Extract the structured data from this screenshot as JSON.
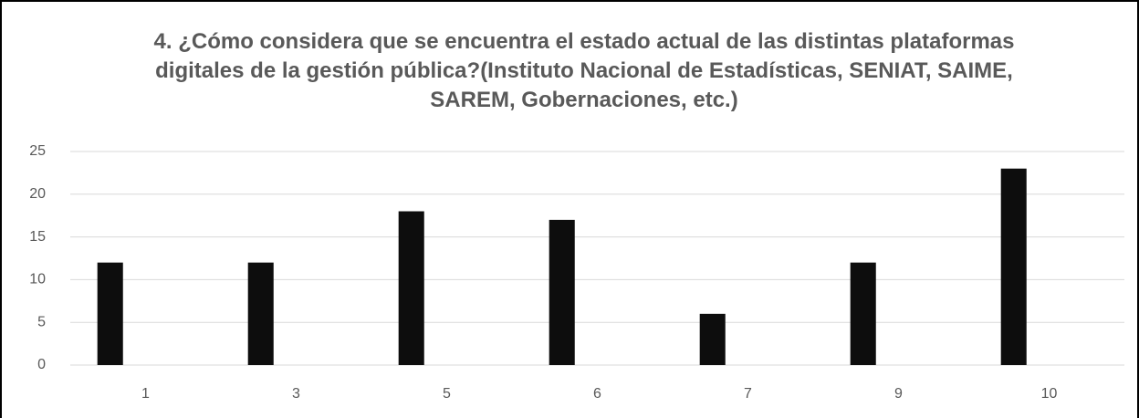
{
  "chart_data": {
    "type": "bar",
    "title": "4. ¿Cómo considera que se encuentra el estado actual de las distintas plataformas digitales de la gestión pública?(Instituto Nacional de Estadísticas, SENIAT, SAIME, SAREM, Gobernaciones, etc.)",
    "categories": [
      "1",
      "3",
      "5",
      "6",
      "7",
      "9",
      "10"
    ],
    "values": [
      12,
      12,
      18,
      17,
      6,
      12,
      23
    ],
    "color": "#0d0d0d",
    "ylim": [
      0,
      25
    ],
    "yticks": [
      0,
      5,
      10,
      15,
      20,
      25
    ],
    "grid": true
  }
}
